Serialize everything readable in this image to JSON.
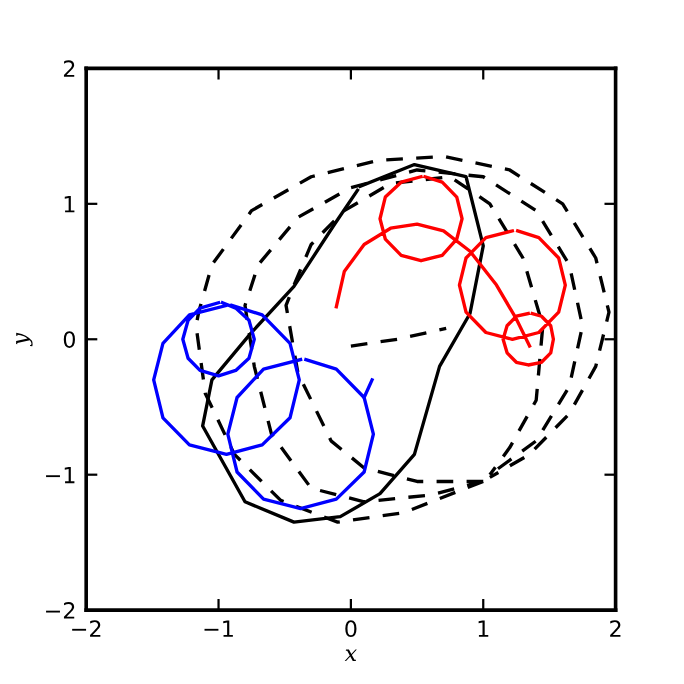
{
  "chart_data": {
    "type": "line",
    "xlabel": "x",
    "ylabel": "y",
    "xlim": [
      -2,
      2
    ],
    "ylim": [
      -2,
      2
    ],
    "xticks": [
      {
        "value": -2,
        "label": "−2"
      },
      {
        "value": -1,
        "label": "−1"
      },
      0,
      1,
      2
    ],
    "yticks": [
      {
        "value": -2,
        "label": "−2"
      },
      {
        "value": -1,
        "label": "−1"
      },
      0,
      1,
      2
    ],
    "grid": false,
    "marker": "none",
    "series": [
      {
        "color": "#000000",
        "line_style": "solid",
        "x": [
          0.07,
          0.48,
          0.87,
          1.0,
          0.9,
          0.67,
          0.48,
          0.22,
          -0.08,
          -0.43,
          -0.8,
          -1.12,
          -1.05,
          -0.76,
          -0.43,
          -0.13,
          0.05
        ],
        "values": [
          1.13,
          1.29,
          1.2,
          0.69,
          0.19,
          -0.2,
          -0.85,
          -1.14,
          -1.31,
          -1.35,
          -1.2,
          -0.64,
          -0.3,
          0.04,
          0.39,
          0.84,
          1.1
        ]
      },
      {
        "color": "#000000",
        "line_style": "dashed",
        "x": [
          1.0,
          0.4,
          -0.1,
          -0.53,
          -0.88,
          -1.1,
          -1.17,
          -1.15,
          -1.05,
          -0.75,
          -0.3,
          0.2,
          0.7,
          1.2,
          1.6,
          1.85,
          1.95,
          1.85,
          1.65,
          1.35,
          1.05,
          null,
          1.0,
          0.6,
          0.1,
          -0.3,
          -0.6,
          -0.73,
          -0.8,
          -0.7,
          -0.4,
          0.0,
          0.5,
          1.0,
          1.4,
          1.65,
          1.75,
          1.65,
          1.4,
          1.05,
          null,
          1.0,
          0.5,
          0.1,
          -0.15,
          -0.4,
          -0.49,
          -0.43,
          -0.3,
          -0.05,
          0.3,
          0.75,
          1.05,
          1.3,
          1.45,
          1.4,
          1.2,
          1.05
        ],
        "values": [
          -1.05,
          -1.28,
          -1.35,
          -1.19,
          -0.85,
          -0.4,
          0.1,
          0.2,
          0.55,
          0.95,
          1.2,
          1.32,
          1.35,
          1.25,
          1.0,
          0.6,
          0.2,
          -0.2,
          -0.55,
          -0.85,
          -1.02,
          null,
          -1.05,
          -1.15,
          -1.2,
          -1.1,
          -0.7,
          -0.2,
          0.25,
          0.55,
          0.9,
          1.12,
          1.25,
          1.2,
          0.95,
          0.55,
          0.1,
          -0.35,
          -0.75,
          -1.0,
          null,
          -1.05,
          -1.05,
          -0.95,
          -0.75,
          -0.25,
          0.25,
          0.4,
          0.7,
          0.95,
          1.15,
          1.2,
          1.0,
          0.6,
          0.1,
          -0.45,
          -0.8,
          -1.0
        ]
      },
      {
        "color": "#000000",
        "line_style": "dashed",
        "x": [
          0.0,
          0.35,
          0.72
        ],
        "values": [
          -0.05,
          0.0,
          0.08
        ]
      },
      {
        "color": "#0000ff",
        "line_style": "solid",
        "x": [
          -1.0,
          -1.14,
          -1.23,
          -1.27,
          -1.23,
          -1.14,
          -1.0,
          -0.87,
          -0.77,
          -0.73,
          -0.77,
          -0.87,
          -0.97,
          null,
          -0.94,
          -1.22,
          -1.42,
          -1.49,
          -1.42,
          -1.22,
          -0.94,
          -0.67,
          -0.46,
          -0.39,
          -0.46,
          -0.67,
          -0.9,
          null,
          -0.38,
          -0.66,
          -0.86,
          -0.93,
          -0.86,
          -0.66,
          -0.38,
          -0.11,
          0.1,
          0.17,
          0.1,
          -0.11,
          -0.34,
          null,
          0.1,
          0.16
        ],
        "values": [
          0.27,
          0.23,
          0.14,
          0.0,
          -0.14,
          -0.23,
          -0.27,
          -0.23,
          -0.14,
          0.0,
          0.14,
          0.23,
          0.27,
          null,
          0.25,
          0.18,
          -0.03,
          -0.3,
          -0.58,
          -0.78,
          -0.85,
          -0.78,
          -0.58,
          -0.3,
          -0.03,
          0.18,
          0.25,
          null,
          -0.15,
          -0.22,
          -0.43,
          -0.7,
          -0.98,
          -1.18,
          -1.25,
          -1.18,
          -0.98,
          -0.7,
          -0.43,
          -0.22,
          -0.15,
          null,
          -0.43,
          -0.3
        ]
      },
      {
        "color": "#ff0000",
        "line_style": "solid",
        "x": [
          -0.11,
          -0.05,
          0.1,
          0.3,
          0.5,
          0.7,
          0.9,
          1.1,
          1.25,
          1.35,
          null,
          0.53,
          0.38,
          0.26,
          0.22,
          0.26,
          0.38,
          0.53,
          0.69,
          0.8,
          0.84,
          0.8,
          0.69,
          0.56,
          null,
          1.22,
          1.02,
          0.87,
          0.82,
          0.87,
          1.02,
          1.22,
          1.42,
          1.57,
          1.62,
          1.57,
          1.42,
          1.26,
          null,
          1.34,
          1.25,
          1.18,
          1.15,
          1.18,
          1.25,
          1.34,
          1.44,
          1.51,
          1.53,
          1.51,
          1.44,
          1.37
        ],
        "values": [
          0.24,
          0.5,
          0.7,
          0.82,
          0.85,
          0.8,
          0.65,
          0.4,
          0.15,
          -0.05,
          null,
          1.2,
          1.16,
          1.05,
          0.89,
          0.74,
          0.62,
          0.58,
          0.62,
          0.74,
          0.89,
          1.05,
          1.16,
          1.2,
          null,
          0.8,
          0.75,
          0.6,
          0.4,
          0.2,
          0.05,
          0.0,
          0.05,
          0.2,
          0.4,
          0.6,
          0.75,
          0.8,
          null,
          0.19,
          0.17,
          0.1,
          0.0,
          -0.1,
          -0.17,
          -0.19,
          -0.17,
          -0.1,
          0.0,
          0.1,
          0.17,
          0.19
        ]
      }
    ]
  }
}
